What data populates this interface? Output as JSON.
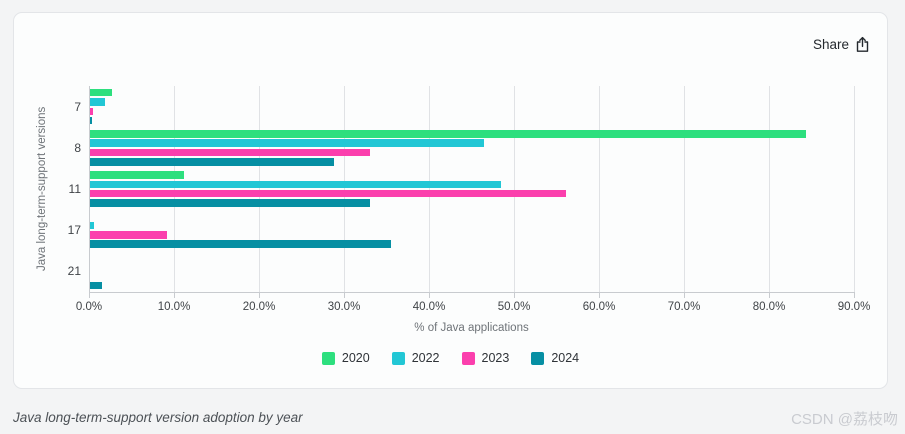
{
  "header": {
    "share_label": "Share"
  },
  "chart_data": {
    "type": "bar",
    "orientation": "horizontal",
    "title": "",
    "categories": [
      "7",
      "8",
      "11",
      "17",
      "21"
    ],
    "series": [
      {
        "name": "2020",
        "color": "#2ddf7e",
        "values": [
          2.6,
          84.2,
          11.0,
          0,
          0
        ]
      },
      {
        "name": "2022",
        "color": "#22c7d5",
        "values": [
          1.8,
          46.4,
          48.4,
          0.5,
          0
        ]
      },
      {
        "name": "2023",
        "color": "#fb3fad",
        "values": [
          0.4,
          32.9,
          56.0,
          9.1,
          0
        ]
      },
      {
        "name": "2024",
        "color": "#068fa3",
        "values": [
          0.2,
          28.7,
          32.9,
          35.4,
          1.4
        ]
      }
    ],
    "xlabel": "% of Java applications",
    "ylabel": "Java long-term-support versions",
    "xlim": [
      0,
      90
    ],
    "x_ticks": [
      "0.0%",
      "10.0%",
      "20.0%",
      "30.0%",
      "40.0%",
      "50.0%",
      "60.0%",
      "70.0%",
      "80.0%",
      "90.0%"
    ],
    "grid": true,
    "legend_position": "bottom"
  },
  "footer": {
    "caption": "Java long-term-support version adoption by year",
    "watermark": "CSDN @荔枝吻"
  }
}
